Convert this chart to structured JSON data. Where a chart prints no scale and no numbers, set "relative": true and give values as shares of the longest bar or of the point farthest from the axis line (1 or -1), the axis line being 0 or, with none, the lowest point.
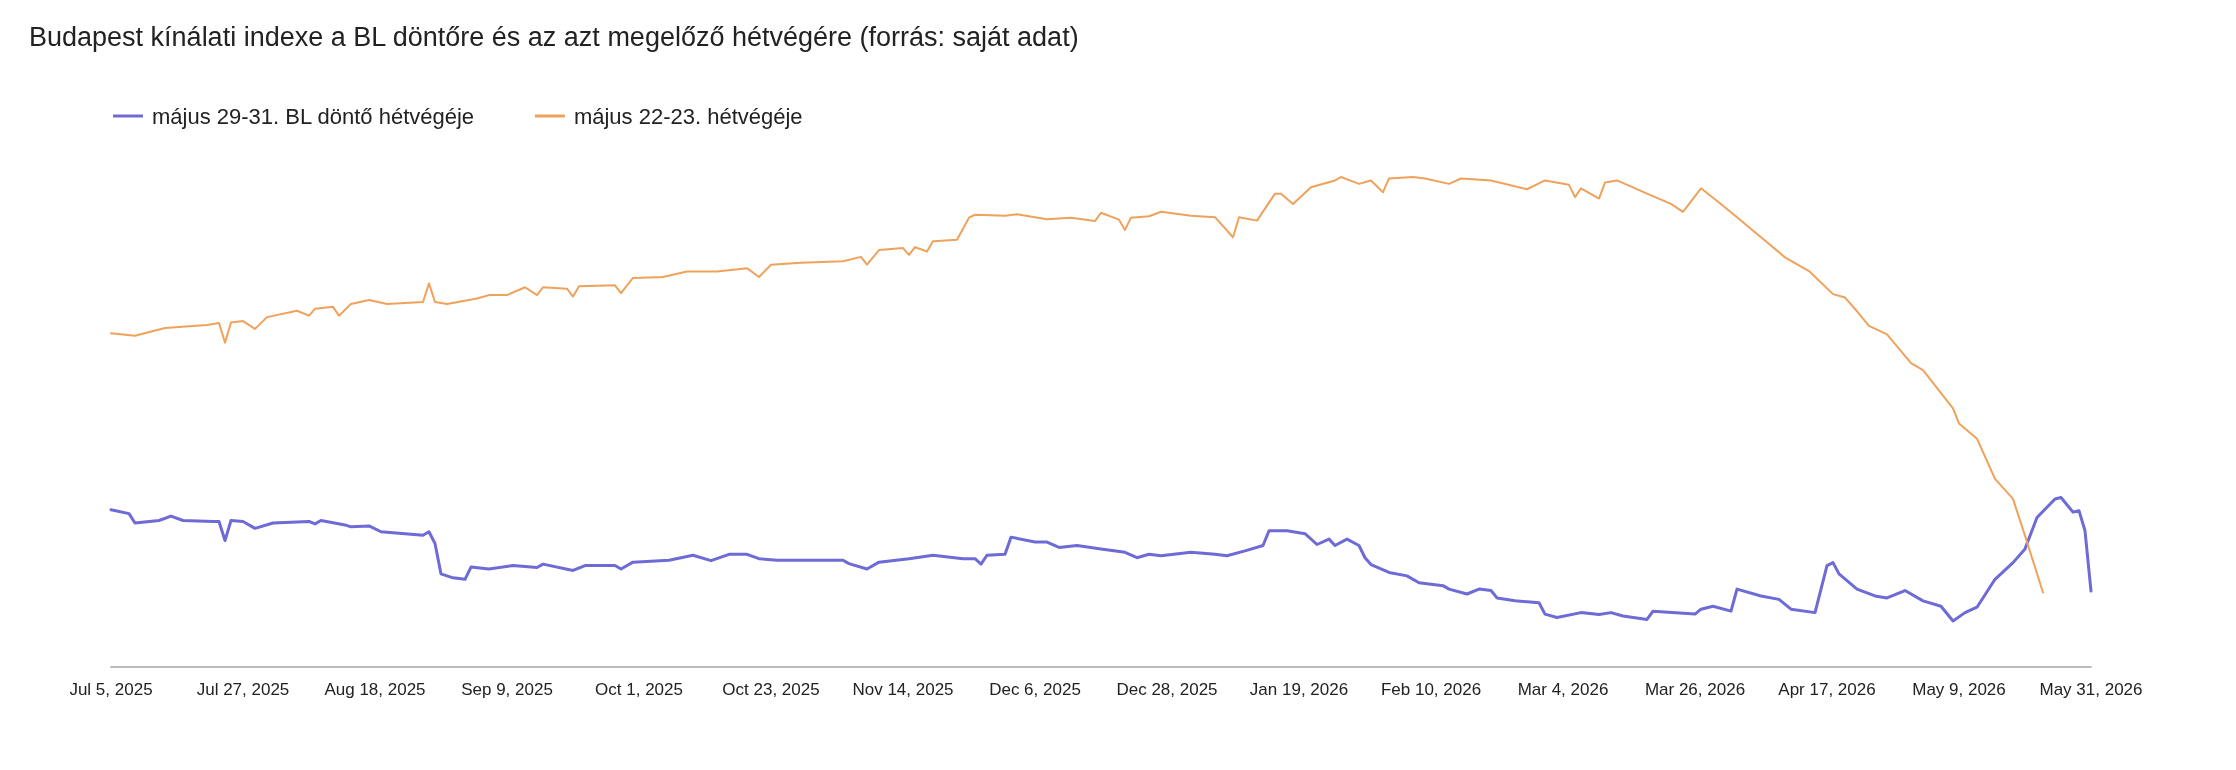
{
  "chart_data": {
    "type": "line",
    "title": "Budapest kínálati indexe a BL döntőre és az azt megelőző hétvégére (forrás: saját adat)",
    "relative": true,
    "legend": "top left",
    "grid": false,
    "marker": "none",
    "line_style": "solid",
    "xlim": [
      "2025-07-05",
      "2026-05-31"
    ],
    "xticks": [
      {
        "value": "2025-07-05",
        "label": "Jul 5, 2025"
      },
      {
        "value": "2025-07-27",
        "label": "Jul 27, 2025"
      },
      {
        "value": "2025-08-18",
        "label": "Aug 18, 2025"
      },
      {
        "value": "2025-09-09",
        "label": "Sep 9, 2025"
      },
      {
        "value": "2025-10-01",
        "label": "Oct 1, 2025"
      },
      {
        "value": "2025-10-23",
        "label": "Oct 23, 2025"
      },
      {
        "value": "2025-11-14",
        "label": "Nov 14, 2025"
      },
      {
        "value": "2025-12-06",
        "label": "Dec 6, 2025"
      },
      {
        "value": "2025-12-28",
        "label": "Dec 28, 2025"
      },
      {
        "value": "2026-01-19",
        "label": "Jan 19, 2026"
      },
      {
        "value": "2026-02-10",
        "label": "Feb 10, 2026"
      },
      {
        "value": "2026-03-04",
        "label": "Mar 4, 2026"
      },
      {
        "value": "2026-03-26",
        "label": "Mar 26, 2026"
      },
      {
        "value": "2026-04-17",
        "label": "Apr 17, 2026"
      },
      {
        "value": "2026-05-09",
        "label": "May 9, 2026"
      },
      {
        "value": "2026-05-31",
        "label": "May 31, 2026"
      }
    ],
    "series": [
      {
        "name": "május 29-31. BL döntő hétvégéje",
        "color": "#6e6ad6",
        "x": [
          "2025-07-05",
          "2025-07-08",
          "2025-07-09",
          "2025-07-13",
          "2025-07-15",
          "2025-07-17",
          "2025-07-22",
          "2025-07-23",
          "2025-07-24",
          "2025-07-25",
          "2025-07-27",
          "2025-07-29",
          "2025-08-01",
          "2025-08-07",
          "2025-08-08",
          "2025-08-09",
          "2025-08-13",
          "2025-08-14",
          "2025-08-17",
          "2025-08-19",
          "2025-08-23",
          "2025-08-26",
          "2025-08-27",
          "2025-08-28",
          "2025-08-29",
          "2025-08-31",
          "2025-09-02",
          "2025-09-03",
          "2025-09-06",
          "2025-09-10",
          "2025-09-14",
          "2025-09-15",
          "2025-09-20",
          "2025-09-22",
          "2025-09-27",
          "2025-09-28",
          "2025-09-30",
          "2025-10-06",
          "2025-10-10",
          "2025-10-13",
          "2025-10-16",
          "2025-10-19",
          "2025-10-21",
          "2025-10-24",
          "2025-11-04",
          "2025-11-05",
          "2025-11-08",
          "2025-11-10",
          "2025-11-15",
          "2025-11-19",
          "2025-11-24",
          "2025-11-26",
          "2025-11-27",
          "2025-11-28",
          "2025-12-01",
          "2025-12-02",
          "2025-12-06",
          "2025-12-08",
          "2025-12-10",
          "2025-12-13",
          "2025-12-17",
          "2025-12-21",
          "2025-12-23",
          "2025-12-25",
          "2025-12-27",
          "2026-01-01",
          "2026-01-05",
          "2026-01-07",
          "2026-01-10",
          "2026-01-13",
          "2026-01-14",
          "2026-01-17",
          "2026-01-20",
          "2026-01-22",
          "2026-01-24",
          "2026-01-25",
          "2026-01-27",
          "2026-01-29",
          "2026-01-30",
          "2026-01-31",
          "2026-02-03",
          "2026-02-06",
          "2026-02-08",
          "2026-02-12",
          "2026-02-13",
          "2026-02-16",
          "2026-02-18",
          "2026-02-20",
          "2026-02-21",
          "2026-02-24",
          "2026-02-28",
          "2026-03-01",
          "2026-03-03",
          "2026-03-07",
          "2026-03-10",
          "2026-03-12",
          "2026-03-14",
          "2026-03-18",
          "2026-03-19",
          "2026-03-26",
          "2026-03-27",
          "2026-03-29",
          "2026-04-01",
          "2026-04-02",
          "2026-04-06",
          "2026-04-09",
          "2026-04-11",
          "2026-04-15",
          "2026-04-17",
          "2026-04-18",
          "2026-04-19",
          "2026-04-22",
          "2026-04-25",
          "2026-04-27",
          "2026-04-30",
          "2026-05-03",
          "2026-05-06",
          "2026-05-08",
          "2026-05-10",
          "2026-05-12",
          "2026-05-15",
          "2026-05-18",
          "2026-05-20",
          "2026-05-22",
          "2026-05-25",
          "2026-05-26",
          "2026-05-28",
          "2026-05-29",
          "2026-05-30",
          "2026-05-31"
        ],
        "values": [
          0.321,
          0.313,
          0.294,
          0.299,
          0.308,
          0.299,
          0.297,
          0.297,
          0.258,
          0.299,
          0.297,
          0.283,
          0.294,
          0.297,
          0.292,
          0.299,
          0.29,
          0.286,
          0.288,
          0.276,
          0.272,
          0.269,
          0.276,
          0.252,
          0.19,
          0.182,
          0.179,
          0.204,
          0.2,
          0.207,
          0.203,
          0.21,
          0.197,
          0.207,
          0.207,
          0.2,
          0.214,
          0.218,
          0.228,
          0.217,
          0.23,
          0.23,
          0.221,
          0.218,
          0.218,
          0.211,
          0.2,
          0.214,
          0.221,
          0.228,
          0.221,
          0.221,
          0.21,
          0.228,
          0.23,
          0.265,
          0.255,
          0.255,
          0.244,
          0.248,
          0.241,
          0.234,
          0.223,
          0.23,
          0.227,
          0.234,
          0.23,
          0.227,
          0.237,
          0.248,
          0.278,
          0.278,
          0.272,
          0.25,
          0.261,
          0.248,
          0.261,
          0.248,
          0.223,
          0.209,
          0.193,
          0.186,
          0.172,
          0.166,
          0.159,
          0.149,
          0.159,
          0.156,
          0.141,
          0.135,
          0.131,
          0.108,
          0.101,
          0.111,
          0.107,
          0.111,
          0.104,
          0.097,
          0.114,
          0.108,
          0.118,
          0.124,
          0.114,
          0.159,
          0.145,
          0.138,
          0.118,
          0.111,
          0.207,
          0.213,
          0.19,
          0.159,
          0.145,
          0.141,
          0.156,
          0.135,
          0.124,
          0.094,
          0.111,
          0.122,
          0.179,
          0.213,
          0.241,
          0.305,
          0.343,
          0.346,
          0.316,
          0.319,
          0.278,
          0.155
        ]
      },
      {
        "name": "május 22-23. hétvégéje",
        "color": "#efa25c",
        "x": [
          "2025-07-05",
          "2025-07-09",
          "2025-07-14",
          "2025-07-21",
          "2025-07-23",
          "2025-07-24",
          "2025-07-25",
          "2025-07-27",
          "2025-07-29",
          "2025-07-31",
          "2025-08-05",
          "2025-08-07",
          "2025-08-08",
          "2025-08-11",
          "2025-08-12",
          "2025-08-14",
          "2025-08-17",
          "2025-08-20",
          "2025-08-26",
          "2025-08-27",
          "2025-08-28",
          "2025-08-30",
          "2025-09-04",
          "2025-09-06",
          "2025-09-09",
          "2025-09-12",
          "2025-09-14",
          "2025-09-15",
          "2025-09-19",
          "2025-09-20",
          "2025-09-21",
          "2025-09-27",
          "2025-09-28",
          "2025-09-30",
          "2025-10-05",
          "2025-10-09",
          "2025-10-14",
          "2025-10-19",
          "2025-10-21",
          "2025-10-23",
          "2025-10-28",
          "2025-11-04",
          "2025-11-07",
          "2025-11-08",
          "2025-11-10",
          "2025-11-14",
          "2025-11-15",
          "2025-11-16",
          "2025-11-18",
          "2025-11-19",
          "2025-11-23",
          "2025-11-25",
          "2025-11-26",
          "2025-12-01",
          "2025-12-03",
          "2025-12-08",
          "2025-12-12",
          "2025-12-16",
          "2025-12-17",
          "2025-12-20",
          "2025-12-21",
          "2025-12-22",
          "2025-12-25",
          "2025-12-27",
          "2026-01-01",
          "2026-01-05",
          "2026-01-08",
          "2026-01-09",
          "2026-01-12",
          "2026-01-15",
          "2026-01-16",
          "2026-01-18",
          "2026-01-21",
          "2026-01-25",
          "2026-01-26",
          "2026-01-29",
          "2026-01-31",
          "2026-02-02",
          "2026-02-03",
          "2026-02-07",
          "2026-02-09",
          "2026-02-13",
          "2026-02-15",
          "2026-02-20",
          "2026-02-26",
          "2026-03-01",
          "2026-03-05",
          "2026-03-06",
          "2026-03-07",
          "2026-03-10",
          "2026-03-11",
          "2026-03-13",
          "2026-03-18",
          "2026-03-22",
          "2026-03-24",
          "2026-03-27",
          "2026-03-30",
          "2026-04-02",
          "2026-04-06",
          "2026-04-10",
          "2026-04-14",
          "2026-04-18",
          "2026-04-20",
          "2026-04-22",
          "2026-04-24",
          "2026-04-27",
          "2026-05-01",
          "2026-05-03",
          "2026-05-08",
          "2026-05-09",
          "2026-05-12",
          "2026-05-15",
          "2026-05-18",
          "2026-05-20",
          "2026-05-23"
        ],
        "values": [
          0.681,
          0.676,
          0.692,
          0.698,
          0.702,
          0.662,
          0.703,
          0.706,
          0.69,
          0.714,
          0.727,
          0.717,
          0.731,
          0.735,
          0.717,
          0.741,
          0.749,
          0.741,
          0.745,
          0.783,
          0.745,
          0.741,
          0.752,
          0.759,
          0.759,
          0.775,
          0.759,
          0.775,
          0.772,
          0.756,
          0.777,
          0.779,
          0.763,
          0.794,
          0.796,
          0.807,
          0.807,
          0.814,
          0.796,
          0.821,
          0.825,
          0.828,
          0.837,
          0.821,
          0.851,
          0.855,
          0.841,
          0.857,
          0.848,
          0.869,
          0.872,
          0.917,
          0.923,
          0.921,
          0.924,
          0.914,
          0.917,
          0.91,
          0.927,
          0.913,
          0.892,
          0.917,
          0.92,
          0.929,
          0.921,
          0.918,
          0.877,
          0.918,
          0.911,
          0.966,
          0.966,
          0.945,
          0.979,
          0.993,
          1,
          0.986,
          0.993,
          0.969,
          0.997,
          1,
          0.997,
          0.986,
          0.997,
          0.993,
          0.975,
          0.993,
          0.984,
          0.959,
          0.977,
          0.956,
          0.989,
          0.993,
          0.966,
          0.945,
          0.929,
          0.977,
          0.948,
          0.918,
          0.877,
          0.836,
          0.808,
          0.761,
          0.754,
          0.726,
          0.696,
          0.679,
          0.62,
          0.606,
          0.528,
          0.497,
          0.466,
          0.384,
          0.343,
          0.268,
          0.152
        ]
      }
    ]
  }
}
